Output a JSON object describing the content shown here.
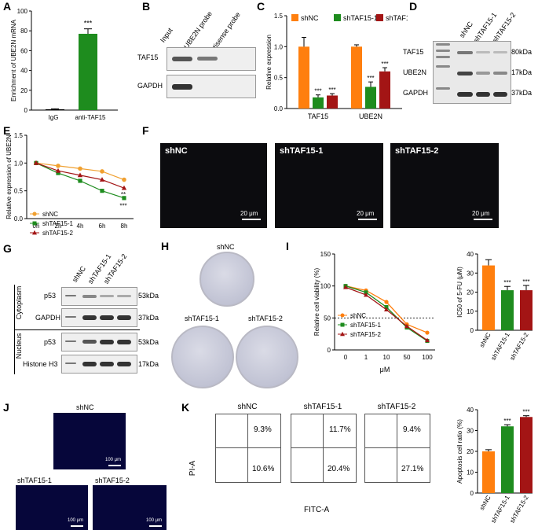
{
  "panels": {
    "A": "A",
    "B": "B",
    "C": "C",
    "D": "D",
    "E": "E",
    "F": "F",
    "G": "G",
    "H": "H",
    "I": "I",
    "J": "J",
    "K": "K"
  },
  "A": {
    "ylabel": "Enrichment of UBE2N mRNA",
    "categories": [
      "IgG",
      "anti-TAF15"
    ],
    "values": [
      0.8,
      77
    ],
    "errors": [
      0.5,
      5
    ],
    "yticks": [
      "0",
      "20",
      "40",
      "60",
      "80",
      "100"
    ],
    "ylim": [
      0,
      100
    ],
    "sig": "***",
    "colors": [
      "#000000",
      "#1e8c1e"
    ]
  },
  "B": {
    "columns": [
      "Input",
      "UBE2N probe",
      "antisense probe"
    ],
    "rows": [
      "TAF15",
      "GAPDH"
    ]
  },
  "C": {
    "ylabel": "Relative expression",
    "groups": [
      "TAF15",
      "UBE2N"
    ],
    "legend": [
      "shNC",
      "shTAF15-1",
      "shTAF15-2"
    ],
    "colors": [
      "#ff7f0e",
      "#1e8c1e",
      "#a31515"
    ],
    "values": [
      [
        1.0,
        0.18,
        0.21
      ],
      [
        1.0,
        0.35,
        0.6
      ]
    ],
    "errors": [
      [
        0.15,
        0.04,
        0.03
      ],
      [
        0.03,
        0.08,
        0.06
      ]
    ],
    "sig": [
      [
        "",
        "***",
        "***"
      ],
      [
        "",
        "***",
        "***"
      ]
    ],
    "yticks": [
      "0.0",
      "0.5",
      "1.0",
      "1.5"
    ],
    "ylim": [
      0,
      1.5
    ]
  },
  "D": {
    "columns": [
      "shNC",
      "shTAF15-1",
      "shTAF15-2"
    ],
    "rows": [
      "TAF15",
      "UBE2N",
      "GAPDH"
    ],
    "sizes": [
      "80kDa",
      "17kDa",
      "37kDa"
    ]
  },
  "E": {
    "ylabel": "Relative expression of UBE2N",
    "x": [
      "0h",
      "2h",
      "4h",
      "6h",
      "8h"
    ],
    "yticks": [
      "0.0",
      "0.5",
      "1.0",
      "1.5"
    ],
    "ylim": [
      0,
      1.5
    ],
    "series": [
      {
        "name": "shNC",
        "values": [
          1.0,
          0.95,
          0.9,
          0.85,
          0.7
        ],
        "color": "#f0a030",
        "marker": "circle"
      },
      {
        "name": "shTAF15-1",
        "values": [
          1.0,
          0.82,
          0.68,
          0.5,
          0.37
        ],
        "color": "#1e8c1e",
        "marker": "square"
      },
      {
        "name": "shTAF15-2",
        "values": [
          1.0,
          0.86,
          0.78,
          0.7,
          0.55
        ],
        "color": "#a31515",
        "marker": "triangle"
      }
    ],
    "sig": [
      "**",
      "***"
    ]
  },
  "F": {
    "labels": [
      "shNC",
      "shTAF15-1",
      "shTAF15-2"
    ],
    "scale": "20 μm"
  },
  "G": {
    "columns": [
      "shNC",
      "shTAF15-1",
      "shTAF15-2"
    ],
    "sections": [
      {
        "name": "Cytoplasm",
        "rows": [
          {
            "label": "p53",
            "size": "53kDa"
          },
          {
            "label": "GAPDH",
            "size": "37kDa"
          }
        ]
      },
      {
        "name": "Nucleus",
        "rows": [
          {
            "label": "p53",
            "size": "53kDa"
          },
          {
            "label": "Histone H3",
            "size": "17kDa"
          }
        ]
      }
    ]
  },
  "H": {
    "labels": [
      "shNC",
      "shTAF15-1",
      "shTAF15-2"
    ]
  },
  "I": {
    "line": {
      "ylabel": "Relative cell viability (%)",
      "xlabel": "μM",
      "x": [
        "0",
        "1",
        "10",
        "50",
        "100"
      ],
      "yticks": [
        "0",
        "50",
        "100",
        "150"
      ],
      "ylim": [
        0,
        150
      ],
      "series": [
        {
          "name": "shNC",
          "values": [
            100,
            93,
            75,
            40,
            27
          ],
          "color": "#ff7f0e",
          "marker": "circle"
        },
        {
          "name": "shTAF15-1",
          "values": [
            100,
            90,
            67,
            35,
            14
          ],
          "color": "#1e8c1e",
          "marker": "square"
        },
        {
          "name": "shTAF15-2",
          "values": [
            98,
            86,
            63,
            37,
            15
          ],
          "color": "#a31515",
          "marker": "triangle"
        }
      ],
      "dashed_at": 50
    },
    "bar": {
      "ylabel": "IC50 of 5-FU (μM)",
      "categories": [
        "shNC",
        "shTAF15-1",
        "shTAF15-2"
      ],
      "values": [
        34,
        21,
        21
      ],
      "errors": [
        3,
        2,
        2.5
      ],
      "colors": [
        "#ff7f0e",
        "#1e8c1e",
        "#a31515"
      ],
      "sig": [
        "",
        "***",
        "***"
      ],
      "yticks": [
        "0",
        "10",
        "20",
        "30",
        "40"
      ],
      "ylim": [
        0,
        40
      ]
    }
  },
  "J": {
    "labels": [
      "shNC",
      "shTAF15-1",
      "shTAF15-2"
    ],
    "scale": "100 μm"
  },
  "K": {
    "titles": [
      "shNC",
      "shTAF15-1",
      "shTAF15-2"
    ],
    "ylabel": "PI-A",
    "xlabel": "FITC-A",
    "quadrants": [
      {
        "ul": "9.3%",
        "lr": "10.6%"
      },
      {
        "ul": "11.7%",
        "lr": "20.4%"
      },
      {
        "ul": "9.4%",
        "lr": "27.1%"
      }
    ],
    "bar": {
      "ylabel": "Apoptosis cell ratio (%)",
      "categories": [
        "shNC",
        "shTAF15-1",
        "shTAF15-2"
      ],
      "values": [
        20,
        32,
        36.5
      ],
      "errors": [
        0.8,
        0.8,
        0.6
      ],
      "colors": [
        "#ff7f0e",
        "#1e8c1e",
        "#a31515"
      ],
      "sig": [
        "",
        "***",
        "***"
      ],
      "yticks": [
        "0",
        "10",
        "20",
        "30",
        "40"
      ],
      "ylim": [
        0,
        40
      ]
    }
  }
}
